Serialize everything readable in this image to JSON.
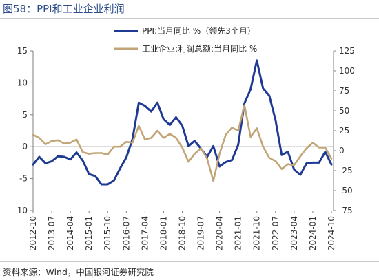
{
  "header": {
    "figure_title": "图58：PPI和工业企业利润"
  },
  "footer": {
    "source": "资料来源：Wind，中国银河证券研究院"
  },
  "colors": {
    "ppi": "#1f3a93",
    "profit": "#c2a576",
    "title": "#2f4d8a"
  },
  "chart_data": {
    "type": "line",
    "title": "",
    "x_tick_labels": [
      "2012-10",
      "2013-07",
      "2014-04",
      "2015-01",
      "2015-10",
      "2016-07",
      "2017-04",
      "2018-01",
      "2018-10",
      "2019-07",
      "2020-04",
      "2021-01",
      "2021-10",
      "2022-07",
      "2023-04",
      "2024-01",
      "2024-10"
    ],
    "y_left": {
      "ticks": [
        -10,
        -5,
        0,
        5,
        10,
        15
      ],
      "range": [
        -10,
        15
      ]
    },
    "y_right": {
      "ticks": [
        -75,
        -50,
        -25,
        0,
        25,
        50,
        75,
        100,
        125
      ],
      "range": [
        -75,
        125
      ]
    },
    "x_range": [
      "2012-10",
      "2024-11"
    ],
    "legend": {
      "position": "top"
    },
    "series": [
      {
        "name": "PPI:当月同比 %（领先3个月）",
        "axis": "left",
        "color": "#1f3a93",
        "points": [
          [
            "2012-10",
            -2.8
          ],
          [
            "2013-01",
            -1.6
          ],
          [
            "2013-04",
            -2.6
          ],
          [
            "2013-07",
            -2.3
          ],
          [
            "2013-10",
            -1.5
          ],
          [
            "2014-01",
            -1.6
          ],
          [
            "2014-04",
            -2.0
          ],
          [
            "2014-07",
            -0.9
          ],
          [
            "2014-10",
            -2.2
          ],
          [
            "2015-01",
            -4.3
          ],
          [
            "2015-04",
            -4.6
          ],
          [
            "2015-07",
            -5.9
          ],
          [
            "2015-10",
            -5.9
          ],
          [
            "2016-01",
            -5.3
          ],
          [
            "2016-04",
            -3.4
          ],
          [
            "2016-07",
            -1.7
          ],
          [
            "2016-10",
            1.2
          ],
          [
            "2017-01",
            6.9
          ],
          [
            "2017-04",
            6.4
          ],
          [
            "2017-07",
            5.5
          ],
          [
            "2017-10",
            6.9
          ],
          [
            "2018-01",
            4.3
          ],
          [
            "2018-04",
            3.4
          ],
          [
            "2018-07",
            4.6
          ],
          [
            "2018-10",
            3.3
          ],
          [
            "2019-01",
            0.1
          ],
          [
            "2019-04",
            0.9
          ],
          [
            "2019-07",
            -0.3
          ],
          [
            "2019-10",
            -1.6
          ],
          [
            "2020-01",
            0.1
          ],
          [
            "2020-04",
            -3.1
          ],
          [
            "2020-07",
            -2.4
          ],
          [
            "2020-10",
            -2.1
          ],
          [
            "2021-01",
            0.3
          ],
          [
            "2021-04",
            6.8
          ],
          [
            "2021-07",
            9.0
          ],
          [
            "2021-10",
            13.5
          ],
          [
            "2022-01",
            9.1
          ],
          [
            "2022-04",
            8.0
          ],
          [
            "2022-07",
            4.2
          ],
          [
            "2022-10",
            -1.3
          ],
          [
            "2023-01",
            -0.8
          ],
          [
            "2023-04",
            -3.6
          ],
          [
            "2023-07",
            -4.4
          ],
          [
            "2023-10",
            -2.6
          ],
          [
            "2024-01",
            -2.5
          ],
          [
            "2024-04",
            -2.5
          ],
          [
            "2024-07",
            -0.8
          ],
          [
            "2024-10",
            -2.8
          ]
        ]
      },
      {
        "name": "工业企业:利润总额:当月同比 %",
        "axis": "right",
        "color": "#c2a576",
        "points": [
          [
            "2012-10",
            20
          ],
          [
            "2013-01",
            16
          ],
          [
            "2013-04",
            8
          ],
          [
            "2013-07",
            12
          ],
          [
            "2013-10",
            13
          ],
          [
            "2014-01",
            9
          ],
          [
            "2014-04",
            10
          ],
          [
            "2014-07",
            14
          ],
          [
            "2014-10",
            -2
          ],
          [
            "2015-01",
            -4
          ],
          [
            "2015-04",
            -3
          ],
          [
            "2015-07",
            -3
          ],
          [
            "2015-10",
            -5
          ],
          [
            "2016-01",
            5
          ],
          [
            "2016-04",
            5
          ],
          [
            "2016-07",
            11
          ],
          [
            "2016-10",
            10
          ],
          [
            "2017-01",
            31
          ],
          [
            "2017-04",
            14
          ],
          [
            "2017-07",
            16
          ],
          [
            "2017-10",
            25
          ],
          [
            "2018-01",
            16
          ],
          [
            "2018-04",
            21
          ],
          [
            "2018-07",
            16
          ],
          [
            "2018-10",
            4
          ],
          [
            "2019-01",
            -14
          ],
          [
            "2019-04",
            -4
          ],
          [
            "2019-07",
            3
          ],
          [
            "2019-10",
            -10
          ],
          [
            "2020-01",
            -38
          ],
          [
            "2020-04",
            -4
          ],
          [
            "2020-07",
            20
          ],
          [
            "2020-10",
            29
          ],
          [
            "2021-01",
            25
          ],
          [
            "2021-04",
            57
          ],
          [
            "2021-07",
            17
          ],
          [
            "2021-10",
            28
          ],
          [
            "2022-01",
            5
          ],
          [
            "2022-04",
            -9
          ],
          [
            "2022-07",
            -13
          ],
          [
            "2022-10",
            -23
          ],
          [
            "2023-01",
            -17
          ],
          [
            "2023-04",
            -18
          ],
          [
            "2023-07",
            -7
          ],
          [
            "2023-10",
            3
          ],
          [
            "2024-01",
            10
          ],
          [
            "2024-04",
            4
          ],
          [
            "2024-07",
            4
          ],
          [
            "2024-10",
            -10
          ]
        ]
      }
    ]
  }
}
